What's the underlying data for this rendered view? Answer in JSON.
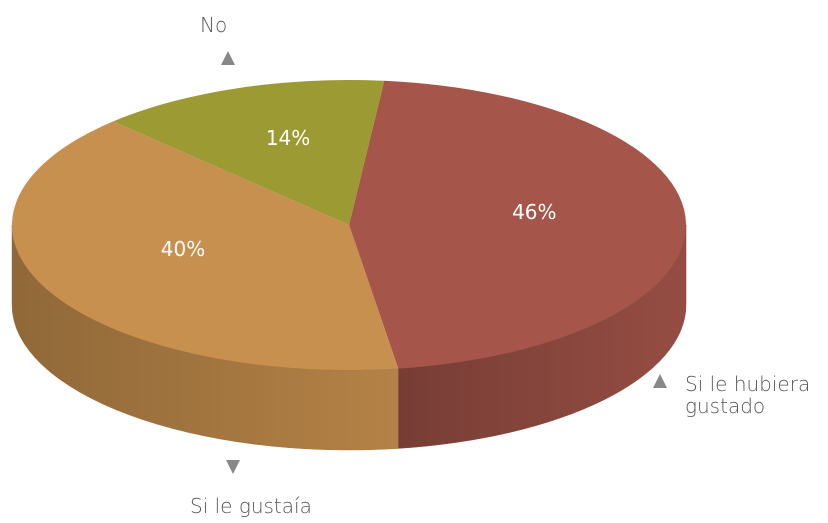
{
  "chart_data": {
    "type": "pie",
    "categories": [
      "Si le hubiera gustado",
      "Si le gustaía",
      "No"
    ],
    "values": [
      46,
      40,
      14
    ],
    "value_labels": [
      "46%",
      "40%",
      "14%"
    ],
    "colors": [
      "#a5554a",
      "#c8904e",
      "#9b9a33"
    ]
  }
}
